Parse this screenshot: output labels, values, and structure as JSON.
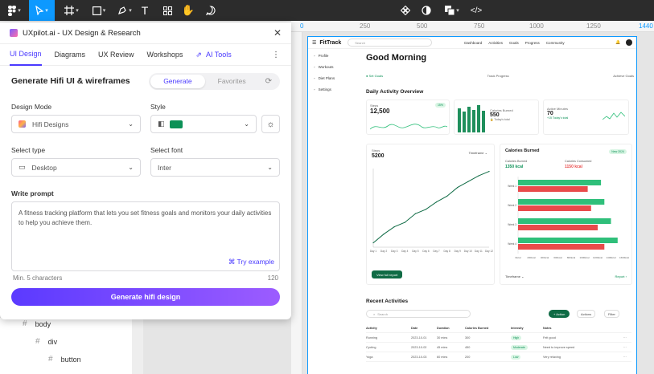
{
  "toolbar": {
    "icons": [
      "figma-menu-icon",
      "move-tool-icon",
      "frame-tool-icon",
      "shape-tool-icon",
      "pen-tool-icon",
      "text-tool-icon",
      "components-icon",
      "hand-tool-icon",
      "comment-icon",
      "component-set-icon",
      "contrast-icon",
      "fill-icon",
      "code-icon"
    ]
  },
  "ruler": {
    "ticks": [
      "0",
      "250",
      "500",
      "750",
      "1000",
      "1250",
      "1440"
    ]
  },
  "plugin": {
    "title": "UXpilot.ai - UX Design & Research",
    "tabs": [
      "UI Design",
      "Diagrams",
      "UX Review",
      "Workshops"
    ],
    "ai_tab": "AI Tools",
    "section_title": "Generate Hifi UI & wireframes",
    "seg_generate": "Generate",
    "seg_favorites": "Favorites",
    "design_mode_label": "Design Mode",
    "design_mode_value": "Hifi Designs",
    "style_label": "Style",
    "select_type_label": "Select type",
    "select_type_value": "Desktop",
    "select_font_label": "Select font",
    "select_font_value": "Inter",
    "prompt_label": "Write prompt",
    "prompt_value": "A fitness tracking platform that lets you set fitness goals and monitors your daily activities to help you achieve them.",
    "try_example": "Try example",
    "min_chars": "Min. 5 characters",
    "char_count": "120",
    "generate_button": "Generate hifi design",
    "accent": "#4a3aff",
    "style_color": "#0c9157"
  },
  "layers": {
    "items": [
      "body",
      "div",
      "button"
    ]
  },
  "fittrack": {
    "logo": "FitTrack",
    "search_placeholder": "Search",
    "nav": [
      "Dashboard",
      "Activities",
      "Goals",
      "Progress",
      "Community"
    ],
    "sidebar": [
      "Profile",
      "Workouts",
      "Diet Plans",
      "Settings"
    ],
    "greeting": "Good Morning",
    "goals": [
      "Set Goals",
      "Track Progress",
      "Achieve Goals"
    ],
    "daily_title": "Daily Activity Overview",
    "steps_label": "Steps",
    "steps_value": "12,500",
    "steps_badge": "15%",
    "calories_label": "Calories Burned",
    "calories_value": "550",
    "calories_note": "Today's total",
    "active_label": "Active Minutes",
    "active_value": "70",
    "active_note": "+15 Today's total",
    "steps_chart_label": "Steps",
    "steps_chart_value": "5200",
    "timeframe": "Timeframe",
    "view_full_report": "View full report",
    "cal_panel_title": "Calories Burned",
    "cal_panel_badge": "New 2024",
    "cal_burned_label": "Calories Burned",
    "cal_burned_value": "1350 kcal",
    "cal_consumed_label": "Calories Consumed",
    "cal_consumed_value": "1150 kcal",
    "report": "Report",
    "recent_title": "Recent Activities",
    "table_search": "Search",
    "add_btn": "+ Action",
    "actions_btn": "Actions",
    "filter_btn": "Filter",
    "table_headers": [
      "Activity",
      "Date",
      "Duration",
      "Calories Burned",
      "Intensity",
      "Notes"
    ],
    "table_rows": [
      [
        "Running",
        "2023-10-01",
        "30 mins",
        "300",
        "High",
        "Felt good"
      ],
      [
        "Cycling",
        "2023-10-02",
        "45 mins",
        "450",
        "Moderate",
        "Need to improve speed"
      ],
      [
        "Yoga",
        "2023-10-03",
        "60 mins",
        "200",
        "Low",
        "Very relaxing"
      ]
    ],
    "colors": {
      "green": "#2fbf7a",
      "red": "#e94b4b",
      "dark_green": "#0f6b45"
    }
  },
  "chart_data": [
    {
      "type": "line",
      "title": "Steps",
      "x": [
        "Day 1",
        "Day 2",
        "Day 3",
        "Day 4",
        "Day 5",
        "Day 6",
        "Day 7",
        "Day 8",
        "Day 9",
        "Day 10",
        "Day 11",
        "Day 12"
      ],
      "values": [
        300,
        900,
        1400,
        1700,
        2300,
        2600,
        3100,
        3500,
        4100,
        4500,
        4900,
        5200
      ]
    },
    {
      "type": "bar",
      "title": "Calories Burned",
      "orientation": "horizontal",
      "categories": [
        "Week 1",
        "Week 2",
        "Week 3",
        "Week 4"
      ],
      "series": [
        {
          "name": "Calories Burned",
          "values": [
            1250,
            1300,
            1400,
            1500
          ]
        },
        {
          "name": "Calories Consumed",
          "values": [
            1050,
            1100,
            1200,
            1300
          ]
        }
      ],
      "xticks": [
        "0kcal",
        "200kcal",
        "400kcal",
        "600kcal",
        "800kcal",
        "1000kcal",
        "1200kcal",
        "1400kcal",
        "1600kcal"
      ]
    }
  ]
}
